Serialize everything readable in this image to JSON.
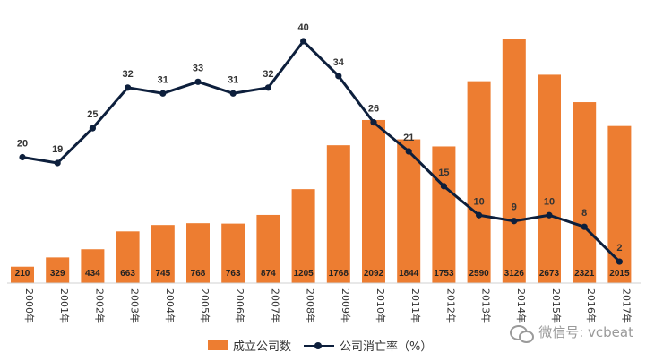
{
  "chart_data": {
    "type": "bar",
    "categories": [
      "2000年",
      "2001年",
      "2002年",
      "2003年",
      "2004年",
      "2005年",
      "2006年",
      "2007年",
      "2008年",
      "2009年",
      "2010年",
      "2011年",
      "2012年",
      "2013年",
      "2014年",
      "2015年",
      "2016年",
      "2017年"
    ],
    "series": [
      {
        "name": "成立公司数",
        "type": "bar",
        "color": "#ed7d31",
        "values": [
          210,
          329,
          434,
          663,
          745,
          768,
          763,
          874,
          1205,
          1768,
          2092,
          1844,
          1753,
          2590,
          3126,
          2673,
          2321,
          2015
        ]
      },
      {
        "name": "公司消亡率（%）",
        "type": "line",
        "color": "#0d1f3c",
        "values": [
          20,
          19,
          25,
          32,
          31,
          33,
          31,
          32,
          40,
          34,
          26,
          21,
          15,
          10,
          9,
          10,
          8,
          2
        ]
      }
    ],
    "bar_labels": [
      "210",
      "329",
      "434",
      "663",
      "745",
      "768",
      "763",
      "874",
      "1205",
      "1768",
      "2092",
      "1844",
      "1753",
      "2590",
      "3126",
      "2673",
      "2321",
      "2015"
    ],
    "line_labels": [
      "20",
      "19",
      "25",
      "32",
      "31",
      "33",
      "31",
      "32",
      "40",
      "34",
      "26",
      "21",
      "15",
      "10",
      "9",
      "10",
      "8",
      "2"
    ],
    "bar_ylim": [
      0,
      3126
    ],
    "line_ylim": [
      0,
      42
    ],
    "legend": {
      "bar_label": "成立公司数",
      "line_label": "公司消亡率（%）",
      "position": "bottom"
    },
    "grid": false
  },
  "watermark": {
    "text": "微信号: vcbeat",
    "icon": "wechat-icon"
  }
}
